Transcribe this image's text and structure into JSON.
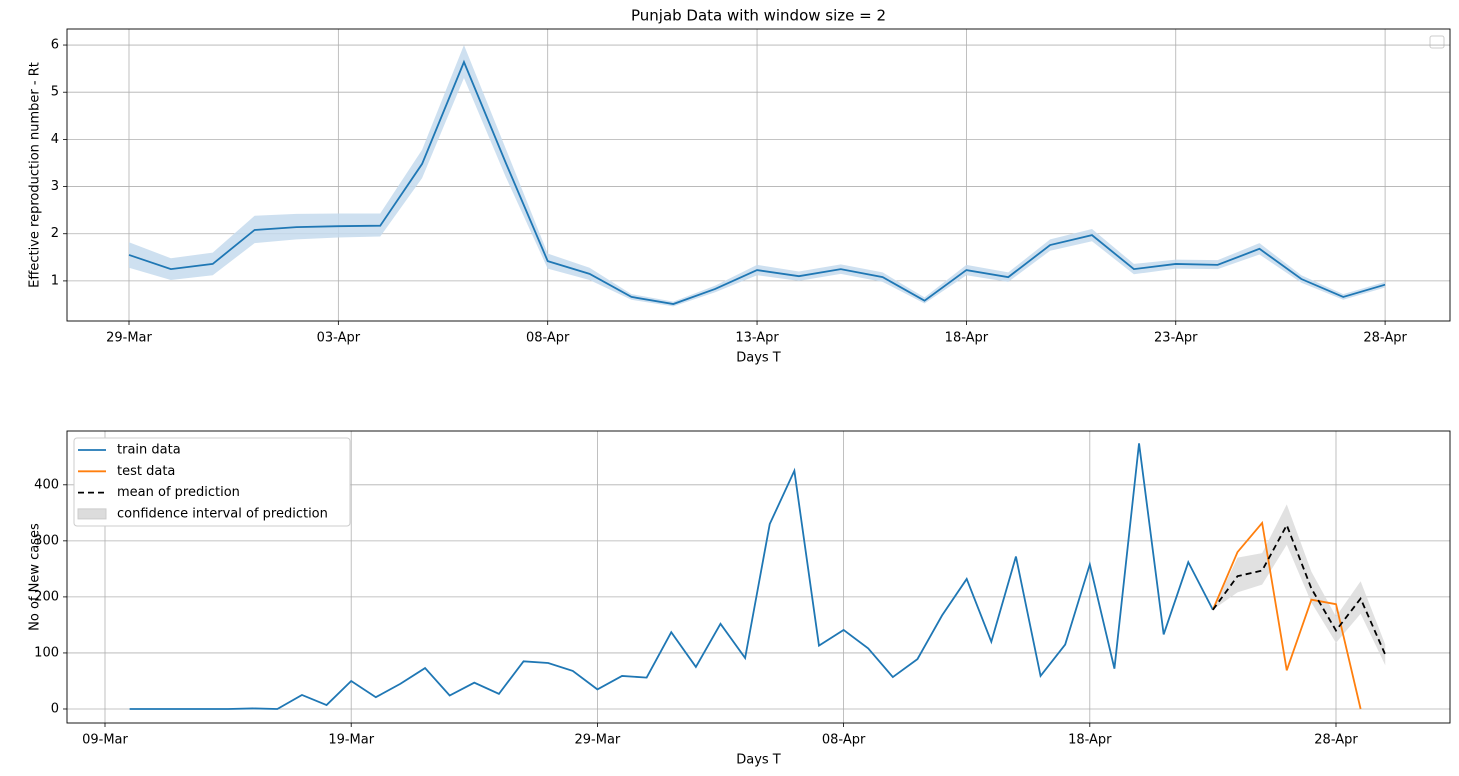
{
  "chart_data": [
    {
      "type": "line",
      "title": "Punjab Data with window size = 2",
      "xlabel": "Days T",
      "ylabel": "Effective reproduction number - Rt",
      "x": [
        "29-Mar",
        "30-Mar",
        "31-Mar",
        "01-Apr",
        "02-Apr",
        "03-Apr",
        "04-Apr",
        "05-Apr",
        "06-Apr",
        "07-Apr",
        "08-Apr",
        "09-Apr",
        "10-Apr",
        "11-Apr",
        "12-Apr",
        "13-Apr",
        "14-Apr",
        "15-Apr",
        "16-Apr",
        "17-Apr",
        "18-Apr",
        "19-Apr",
        "20-Apr",
        "21-Apr",
        "22-Apr",
        "23-Apr",
        "24-Apr",
        "25-Apr",
        "26-Apr",
        "27-Apr",
        "28-Apr"
      ],
      "series": [
        {
          "color": "#1f77b4",
          "values": [
            1.55,
            1.25,
            1.36,
            2.08,
            2.14,
            2.16,
            2.17,
            3.48,
            5.64,
            3.5,
            1.42,
            1.15,
            0.66,
            0.51,
            0.83,
            1.23,
            1.1,
            1.25,
            1.08,
            0.58,
            1.23,
            1.08,
            1.76,
            1.97,
            1.25,
            1.36,
            1.34,
            1.68,
            1.04,
            0.66,
            0.92
          ],
          "lower": [
            1.28,
            1.02,
            1.12,
            1.8,
            1.88,
            1.92,
            1.94,
            3.18,
            5.3,
            3.2,
            1.26,
            1.02,
            0.6,
            0.46,
            0.76,
            1.12,
            1.0,
            1.15,
            0.98,
            0.52,
            1.12,
            0.98,
            1.64,
            1.84,
            1.14,
            1.26,
            1.25,
            1.56,
            0.96,
            0.6,
            0.86
          ],
          "upper": [
            1.82,
            1.48,
            1.6,
            2.38,
            2.42,
            2.43,
            2.43,
            3.78,
            6.0,
            3.8,
            1.58,
            1.28,
            0.72,
            0.56,
            0.9,
            1.34,
            1.2,
            1.35,
            1.18,
            0.65,
            1.34,
            1.18,
            1.88,
            2.1,
            1.36,
            1.45,
            1.44,
            1.8,
            1.12,
            0.72,
            0.98
          ],
          "band_color": "#c6dbed"
        }
      ],
      "xticks": [
        "29-Mar",
        "03-Apr",
        "08-Apr",
        "13-Apr",
        "18-Apr",
        "23-Apr",
        "28-Apr"
      ],
      "ylim": [
        0.15,
        6.34
      ],
      "yticks": [
        1,
        2,
        3,
        4,
        5,
        6
      ],
      "grid": true
    },
    {
      "type": "line",
      "xlabel": "Days T",
      "ylabel": "No of New cases",
      "x": [
        "09-Mar",
        "10-Mar",
        "11-Mar",
        "12-Mar",
        "13-Mar",
        "14-Mar",
        "15-Mar",
        "16-Mar",
        "17-Mar",
        "18-Mar",
        "19-Mar",
        "20-Mar",
        "21-Mar",
        "22-Mar",
        "23-Mar",
        "24-Mar",
        "25-Mar",
        "26-Mar",
        "27-Mar",
        "28-Mar",
        "29-Mar",
        "30-Mar",
        "31-Mar",
        "01-Apr",
        "02-Apr",
        "03-Apr",
        "04-Apr",
        "05-Apr",
        "06-Apr",
        "07-Apr",
        "08-Apr",
        "09-Apr",
        "10-Apr",
        "11-Apr",
        "12-Apr",
        "13-Apr",
        "14-Apr",
        "15-Apr",
        "16-Apr",
        "17-Apr",
        "18-Apr",
        "19-Apr",
        "20-Apr",
        "21-Apr",
        "22-Apr",
        "23-Apr",
        "24-Apr",
        "25-Apr",
        "26-Apr",
        "27-Apr",
        "28-Apr",
        "29-Apr",
        "30-Apr"
      ],
      "series": [
        {
          "name": "train data",
          "color": "#1f77b4",
          "values": [
            null,
            0,
            0,
            0,
            0,
            0,
            1,
            0,
            25,
            7,
            50,
            21,
            45,
            73,
            24,
            47,
            27,
            85,
            82,
            68,
            35,
            59,
            56,
            137,
            75,
            152,
            91,
            330,
            425,
            113,
            141,
            108,
            57,
            89,
            167,
            232,
            120,
            272,
            59,
            115,
            258,
            72,
            474,
            133,
            262,
            177,
            null,
            null,
            null,
            null,
            null,
            null,
            null
          ]
        },
        {
          "name": "test data",
          "color": "#ff7f0e",
          "values": [
            null,
            null,
            null,
            null,
            null,
            null,
            null,
            null,
            null,
            null,
            null,
            null,
            null,
            null,
            null,
            null,
            null,
            null,
            null,
            null,
            null,
            null,
            null,
            null,
            null,
            null,
            null,
            null,
            null,
            null,
            null,
            null,
            null,
            null,
            null,
            null,
            null,
            null,
            null,
            null,
            null,
            null,
            null,
            null,
            null,
            177,
            280,
            332,
            69,
            195,
            187,
            0,
            null
          ]
        },
        {
          "name": "mean of prediction",
          "color": "#000000",
          "dashed": true,
          "values": [
            null,
            null,
            null,
            null,
            null,
            null,
            null,
            null,
            null,
            null,
            null,
            null,
            null,
            null,
            null,
            null,
            null,
            null,
            null,
            null,
            null,
            null,
            null,
            null,
            null,
            null,
            null,
            null,
            null,
            null,
            null,
            null,
            null,
            null,
            null,
            null,
            null,
            null,
            null,
            null,
            null,
            null,
            null,
            null,
            null,
            177,
            237,
            247,
            328,
            215,
            140,
            197,
            97
          ]
        },
        {
          "name": "confidence interval of prediction",
          "band_color": "#dcdcdc",
          "lower": [
            null,
            null,
            null,
            null,
            null,
            null,
            null,
            null,
            null,
            null,
            null,
            null,
            null,
            null,
            null,
            null,
            null,
            null,
            null,
            null,
            null,
            null,
            null,
            null,
            null,
            null,
            null,
            null,
            null,
            null,
            null,
            null,
            null,
            null,
            null,
            null,
            null,
            null,
            null,
            null,
            null,
            null,
            null,
            null,
            null,
            177,
            208,
            222,
            293,
            190,
            118,
            170,
            78
          ],
          "upper": [
            null,
            null,
            null,
            null,
            null,
            null,
            null,
            null,
            null,
            null,
            null,
            null,
            null,
            null,
            null,
            null,
            null,
            null,
            null,
            null,
            null,
            null,
            null,
            null,
            null,
            null,
            null,
            null,
            null,
            null,
            null,
            null,
            null,
            null,
            null,
            null,
            null,
            null,
            null,
            null,
            null,
            null,
            null,
            null,
            null,
            177,
            270,
            278,
            365,
            245,
            165,
            228,
            115
          ]
        }
      ],
      "xticks": [
        "09-Mar",
        "19-Mar",
        "29-Mar",
        "08-Apr",
        "18-Apr",
        "28-Apr"
      ],
      "ylim": [
        -25,
        496
      ],
      "yticks": [
        0,
        100,
        200,
        300,
        400
      ],
      "grid": true,
      "legend": "upper-left"
    }
  ]
}
